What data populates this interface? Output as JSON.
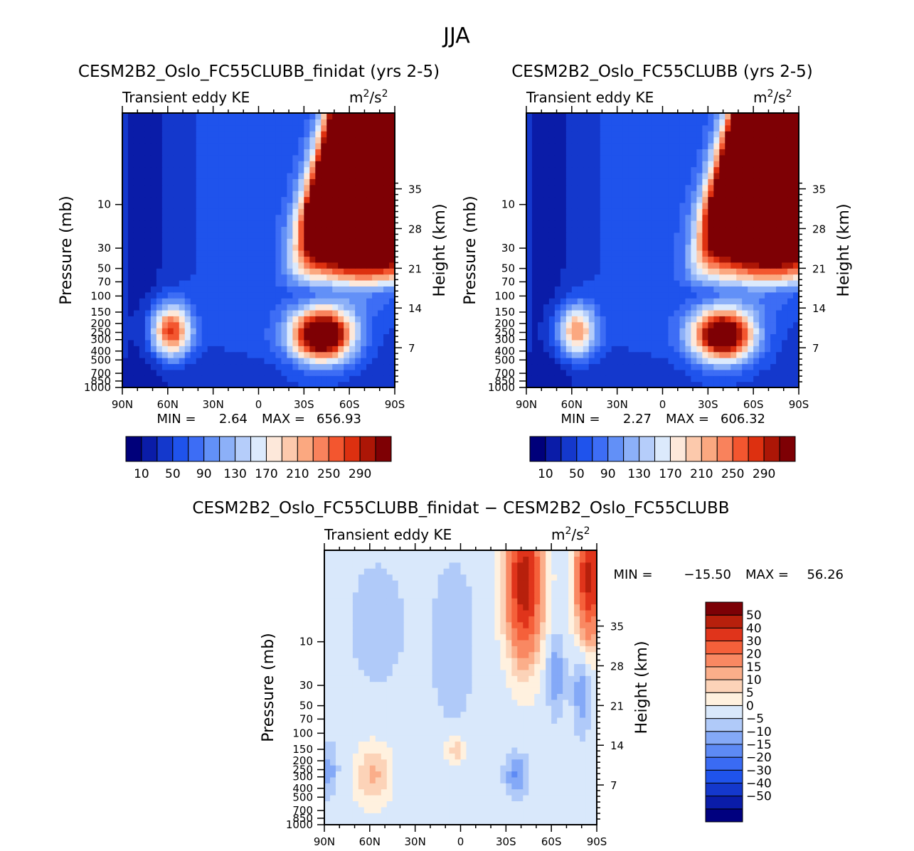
{
  "figure": {
    "title": "JJA",
    "colors": {
      "kePalette": [
        "#00007a",
        "#0a1ca8",
        "#1438cc",
        "#1f53ec",
        "#3d6df5",
        "#6290f7",
        "#8cb0f8",
        "#b5cdfa",
        "#dceafc",
        "#fde8da",
        "#fcc9ac",
        "#fba880",
        "#f9825c",
        "#f3562f",
        "#dd3010",
        "#ac1606",
        "#7e0004"
      ],
      "diffPalette": [
        "#00007f",
        "#0a1ca8",
        "#1438cc",
        "#1f53ec",
        "#3a6bf3",
        "#5d8af5",
        "#84a9f7",
        "#b0caf9",
        "#d9e8fb",
        "#fff1df",
        "#fcd3b8",
        "#fbae8a",
        "#f98862",
        "#f5603a",
        "#e0341b",
        "#b7200c",
        "#7c0106"
      ]
    }
  },
  "chart_data": [
    {
      "type": "heatmap",
      "id": "top-left",
      "title": "CESM2B2_Oslo_FC55CLUBB_finidat (yrs 2-5)",
      "left_label": "Transient eddy KE",
      "units": "m²/s²",
      "units_base": "m",
      "units_sup": "2",
      "units_mid": "/s",
      "ylabel": "Pressure (mb)",
      "y2label": "Height (km)",
      "min_label": "MIN =",
      "min_value": "2.64",
      "max_label": "MAX =",
      "max_value": "656.93",
      "x_range": [
        90,
        -90
      ],
      "x_ticks": [
        {
          "v": 90,
          "label": "90N"
        },
        {
          "v": 60,
          "label": "60N"
        },
        {
          "v": 30,
          "label": "30N"
        },
        {
          "v": 0,
          "label": "0"
        },
        {
          "v": -30,
          "label": "30S"
        },
        {
          "v": -60,
          "label": "60S"
        },
        {
          "v": -90,
          "label": "90S"
        }
      ],
      "p_range": [
        1000,
        1
      ],
      "p_ticks": [
        {
          "v": 10,
          "label": "10"
        },
        {
          "v": 30,
          "label": "30"
        },
        {
          "v": 50,
          "label": "50"
        },
        {
          "v": 70,
          "label": "70"
        },
        {
          "v": 100,
          "label": "100"
        },
        {
          "v": 150,
          "label": "150"
        },
        {
          "v": 200,
          "label": "200"
        },
        {
          "v": 250,
          "label": "250"
        },
        {
          "v": 300,
          "label": "300"
        },
        {
          "v": 400,
          "label": "400"
        },
        {
          "v": 500,
          "label": "500"
        },
        {
          "v": 700,
          "label": "700"
        },
        {
          "v": 850,
          "label": "850"
        },
        {
          "v": 1000,
          "label": "1000"
        }
      ],
      "height_ticks": [
        {
          "v": 35,
          "label": "35"
        },
        {
          "v": 28,
          "label": "28"
        },
        {
          "v": 21,
          "label": "21"
        },
        {
          "v": 14,
          "label": "14"
        },
        {
          "v": 7,
          "label": "7"
        }
      ],
      "levels": [
        10,
        30,
        50,
        70,
        90,
        110,
        130,
        150,
        170,
        190,
        210,
        230,
        250,
        270,
        290,
        310
      ],
      "colorbar_labels": [
        "10",
        "50",
        "90",
        "130",
        "170",
        "210",
        "250",
        "290"
      ],
      "colorbar_label_values": [
        10,
        50,
        90,
        130,
        170,
        210,
        250,
        290
      ],
      "field_model": "transient_eddy_ke_a"
    },
    {
      "type": "heatmap",
      "id": "top-right",
      "title": "CESM2B2_Oslo_FC55CLUBB (yrs 2-5)",
      "left_label": "Transient eddy KE",
      "units": "m²/s²",
      "units_base": "m",
      "units_sup": "2",
      "units_mid": "/s",
      "ylabel": "Pressure (mb)",
      "y2label": "Height (km)",
      "min_label": "MIN =",
      "min_value": "2.27",
      "max_label": "MAX =",
      "max_value": "606.32",
      "x_range": [
        90,
        -90
      ],
      "x_ticks": [
        {
          "v": 90,
          "label": "90N"
        },
        {
          "v": 60,
          "label": "60N"
        },
        {
          "v": 30,
          "label": "30N"
        },
        {
          "v": 0,
          "label": "0"
        },
        {
          "v": -30,
          "label": "30S"
        },
        {
          "v": -60,
          "label": "60S"
        },
        {
          "v": -90,
          "label": "90S"
        }
      ],
      "p_range": [
        1000,
        1
      ],
      "p_ticks": [
        {
          "v": 10,
          "label": "10"
        },
        {
          "v": 30,
          "label": "30"
        },
        {
          "v": 50,
          "label": "50"
        },
        {
          "v": 70,
          "label": "70"
        },
        {
          "v": 100,
          "label": "100"
        },
        {
          "v": 150,
          "label": "150"
        },
        {
          "v": 200,
          "label": "200"
        },
        {
          "v": 250,
          "label": "250"
        },
        {
          "v": 300,
          "label": "300"
        },
        {
          "v": 400,
          "label": "400"
        },
        {
          "v": 500,
          "label": "500"
        },
        {
          "v": 700,
          "label": "700"
        },
        {
          "v": 850,
          "label": "850"
        },
        {
          "v": 1000,
          "label": "1000"
        }
      ],
      "height_ticks": [
        {
          "v": 35,
          "label": "35"
        },
        {
          "v": 28,
          "label": "28"
        },
        {
          "v": 21,
          "label": "21"
        },
        {
          "v": 14,
          "label": "14"
        },
        {
          "v": 7,
          "label": "7"
        }
      ],
      "levels": [
        10,
        30,
        50,
        70,
        90,
        110,
        130,
        150,
        170,
        190,
        210,
        230,
        250,
        270,
        290,
        310
      ],
      "colorbar_labels": [
        "10",
        "50",
        "90",
        "130",
        "170",
        "210",
        "250",
        "290"
      ],
      "colorbar_label_values": [
        10,
        50,
        90,
        130,
        170,
        210,
        250,
        290
      ],
      "field_model": "transient_eddy_ke_b"
    },
    {
      "type": "heatmap",
      "id": "difference",
      "title": "CESM2B2_Oslo_FC55CLUBB_finidat − CESM2B2_Oslo_FC55CLUBB",
      "left_label": "Transient eddy KE",
      "units": "m²/s²",
      "units_base": "m",
      "units_sup": "2",
      "units_mid": "/s",
      "ylabel": "Pressure (mb)",
      "y2label": "Height (km)",
      "min_label": "MIN =",
      "min_value": "−15.50",
      "max_label": "MAX =",
      "max_value": "56.26",
      "x_range": [
        90,
        -90
      ],
      "x_ticks": [
        {
          "v": 90,
          "label": "90N"
        },
        {
          "v": 60,
          "label": "60N"
        },
        {
          "v": 30,
          "label": "30N"
        },
        {
          "v": 0,
          "label": "0"
        },
        {
          "v": -30,
          "label": "30S"
        },
        {
          "v": -60,
          "label": "60S"
        },
        {
          "v": -90,
          "label": "90S"
        }
      ],
      "p_range": [
        1000,
        1
      ],
      "p_ticks": [
        {
          "v": 10,
          "label": "10"
        },
        {
          "v": 30,
          "label": "30"
        },
        {
          "v": 50,
          "label": "50"
        },
        {
          "v": 70,
          "label": "70"
        },
        {
          "v": 100,
          "label": "100"
        },
        {
          "v": 150,
          "label": "150"
        },
        {
          "v": 200,
          "label": "200"
        },
        {
          "v": 250,
          "label": "250"
        },
        {
          "v": 300,
          "label": "300"
        },
        {
          "v": 400,
          "label": "400"
        },
        {
          "v": 500,
          "label": "500"
        },
        {
          "v": 700,
          "label": "700"
        },
        {
          "v": 850,
          "label": "850"
        },
        {
          "v": 1000,
          "label": "1000"
        }
      ],
      "height_ticks": [
        {
          "v": 35,
          "label": "35"
        },
        {
          "v": 28,
          "label": "28"
        },
        {
          "v": 21,
          "label": "21"
        },
        {
          "v": 14,
          "label": "14"
        },
        {
          "v": 7,
          "label": "7"
        }
      ],
      "levels": [
        -50,
        -40,
        -30,
        -20,
        -15,
        -10,
        -5,
        0,
        5,
        10,
        15,
        20,
        30,
        40,
        50
      ],
      "colorbar_labels": [
        "50",
        "40",
        "30",
        "20",
        "15",
        "10",
        "5",
        "0",
        "−5",
        "−10",
        "−15",
        "−20",
        "−30",
        "−40",
        "−50"
      ],
      "field_model": "transient_eddy_ke_diff"
    }
  ]
}
